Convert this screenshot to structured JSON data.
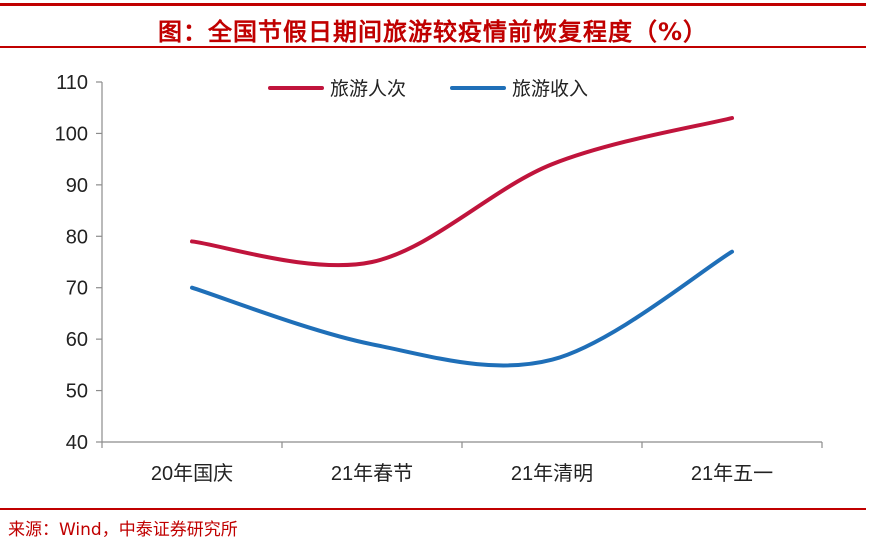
{
  "header": {
    "title": "图：全国节假日期间旅游较疫情前恢复程度（%）"
  },
  "footer": {
    "source": "来源：Wind，中泰证券研究所"
  },
  "chart_data": {
    "type": "line",
    "title": "图：全国节假日期间旅游较疫情前恢复程度（%）",
    "categories": [
      "20年国庆",
      "21年春节",
      "21年清明",
      "21年五一"
    ],
    "series": [
      {
        "name": "旅游人次",
        "values": [
          79,
          75,
          94,
          103
        ],
        "color": "#c0143c"
      },
      {
        "name": "旅游收入",
        "values": [
          70,
          59,
          56,
          77
        ],
        "color": "#1f6fb8"
      }
    ],
    "ylim": [
      40,
      110
    ],
    "yticks": [
      40,
      50,
      60,
      70,
      80,
      90,
      100,
      110
    ],
    "smooth": true,
    "grid": false,
    "legend_position": "top-center"
  }
}
